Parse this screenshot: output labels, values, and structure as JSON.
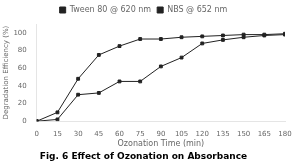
{
  "chart_data": {
    "type": "line",
    "title": "Fig. 6 Effect of Ozonation on Absorbance",
    "x_label": "Ozonation Time (min)",
    "y_label": "Degradation Efficiency (%)",
    "x": [
      0,
      15,
      30,
      45,
      60,
      75,
      90,
      105,
      120,
      135,
      150,
      165,
      180
    ],
    "series": [
      {
        "name": "Tween 80 @ 620 nm",
        "color": "#222222",
        "marker": "square",
        "values": [
          0,
          10,
          48,
          75,
          85,
          93,
          93,
          95,
          96,
          97,
          98,
          98,
          99
        ]
      },
      {
        "name": "NBS @ 652 nm",
        "color": "#222222",
        "marker": "square",
        "values": [
          0,
          2,
          30,
          32,
          45,
          45,
          62,
          72,
          88,
          92,
          95,
          97,
          98
        ]
      }
    ],
    "xlim": [
      0,
      180
    ],
    "ylim": [
      0,
      110
    ],
    "xticks": [
      0,
      15,
      30,
      45,
      60,
      75,
      90,
      105,
      120,
      135,
      150,
      165,
      180
    ],
    "yticks": [
      0,
      20,
      40,
      60,
      80,
      100
    ],
    "grid": false,
    "legend": "top"
  }
}
